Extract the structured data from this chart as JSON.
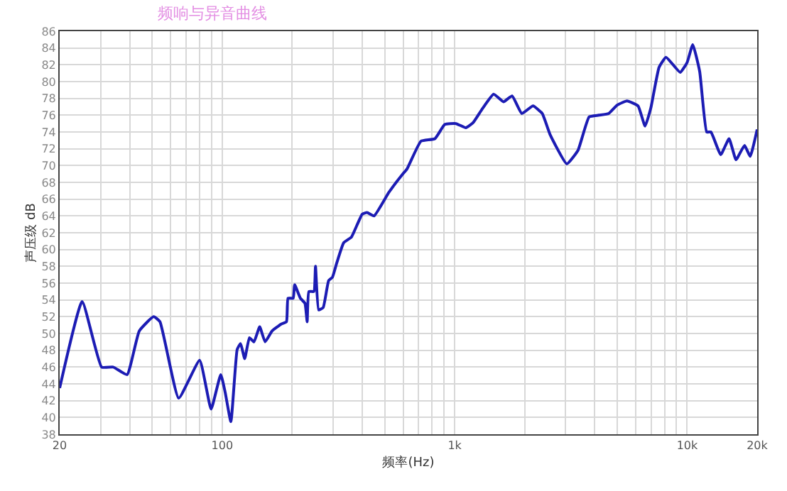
{
  "chart_data": {
    "type": "line",
    "title": "频响与异音曲线",
    "xlabel": "频率(Hz)",
    "ylabel": "声压级 dB",
    "log": "x",
    "grid": true,
    "marker": "none",
    "line_style": "solid",
    "x": [
      20,
      25,
      30.3,
      34,
      39,
      44,
      50.7,
      54,
      65,
      80,
      89.6,
      98.6,
      103,
      109,
      116,
      120,
      125,
      131,
      137,
      145,
      153,
      164,
      179,
      189,
      192,
      202,
      205,
      217,
      227,
      232,
      236,
      248,
      252,
      260,
      272,
      287,
      298,
      311,
      333,
      360,
      400,
      420,
      450,
      521,
      598,
      624,
      716,
      822,
      907,
      1013,
      1117,
      1200,
      1318,
      1471,
      1622,
      1766,
      1944,
      2172,
      2380,
      2572,
      3036,
      3390,
      3787,
      4170,
      4595,
      5000,
      5510,
      6150,
      6590,
      6970,
      7570,
      8110,
      9330,
      10000,
      10570,
      11320,
      12130,
      12650,
      13940,
      15140,
      16220,
      17650,
      18660,
      20000
    ],
    "series": [
      {
        "color": "#1c1cb4",
        "values": [
          43.5,
          53.8,
          46,
          46,
          45.1,
          50.3,
          52,
          51.4,
          42.3,
          46.8,
          41,
          45.1,
          43,
          39.5,
          48.1,
          48.8,
          47,
          49.5,
          49,
          50.8,
          49,
          50.3,
          51.1,
          51.4,
          54.2,
          54.2,
          55.8,
          54.2,
          53.6,
          51.4,
          55,
          55,
          58,
          52.8,
          53.1,
          56.3,
          56.7,
          58.4,
          60.8,
          61.5,
          64.2,
          64.4,
          64,
          66.8,
          69,
          69.6,
          72.9,
          73.2,
          74.9,
          75,
          74.5,
          75.1,
          76.8,
          78.5,
          77.6,
          78.3,
          76.2,
          77.1,
          76.2,
          73.7,
          70.2,
          71.8,
          75.8,
          76,
          76.2,
          77.2,
          77.7,
          77.1,
          74.7,
          76.8,
          81.7,
          82.9,
          81.1,
          82.3,
          84.4,
          81.2,
          74,
          74,
          71.3,
          73.2,
          70.7,
          72.4,
          71.1,
          74.3
        ]
      }
    ],
    "xlim": [
      20,
      20000
    ],
    "xticks": [
      20,
      {
        "value": 30,
        "label": null
      },
      {
        "value": 40,
        "label": null
      },
      {
        "value": 50,
        "label": null
      },
      {
        "value": 60,
        "label": null
      },
      {
        "value": 70,
        "label": null
      },
      {
        "value": 80,
        "label": null
      },
      {
        "value": 90,
        "label": null
      },
      100,
      {
        "value": 200,
        "label": null
      },
      {
        "value": 300,
        "label": null
      },
      {
        "value": 400,
        "label": null
      },
      {
        "value": 500,
        "label": null
      },
      {
        "value": 600,
        "label": null
      },
      {
        "value": 700,
        "label": null
      },
      {
        "value": 800,
        "label": null
      },
      {
        "value": 900,
        "label": null
      },
      {
        "value": 1000,
        "label": "1k"
      },
      {
        "value": 2000,
        "label": null
      },
      {
        "value": 3000,
        "label": null
      },
      {
        "value": 4000,
        "label": null
      },
      {
        "value": 5000,
        "label": null
      },
      {
        "value": 6000,
        "label": null
      },
      {
        "value": 7000,
        "label": null
      },
      {
        "value": 8000,
        "label": null
      },
      {
        "value": 9000,
        "label": null
      },
      {
        "value": 10000,
        "label": "10k"
      },
      {
        "value": 20000,
        "label": "20k"
      }
    ],
    "ylim": [
      38,
      86
    ],
    "yticks": [
      38,
      40,
      42,
      44,
      46,
      48,
      50,
      52,
      54,
      56,
      58,
      60,
      62,
      64,
      66,
      68,
      70,
      72,
      74,
      76,
      78,
      80,
      82,
      84,
      86
    ]
  }
}
